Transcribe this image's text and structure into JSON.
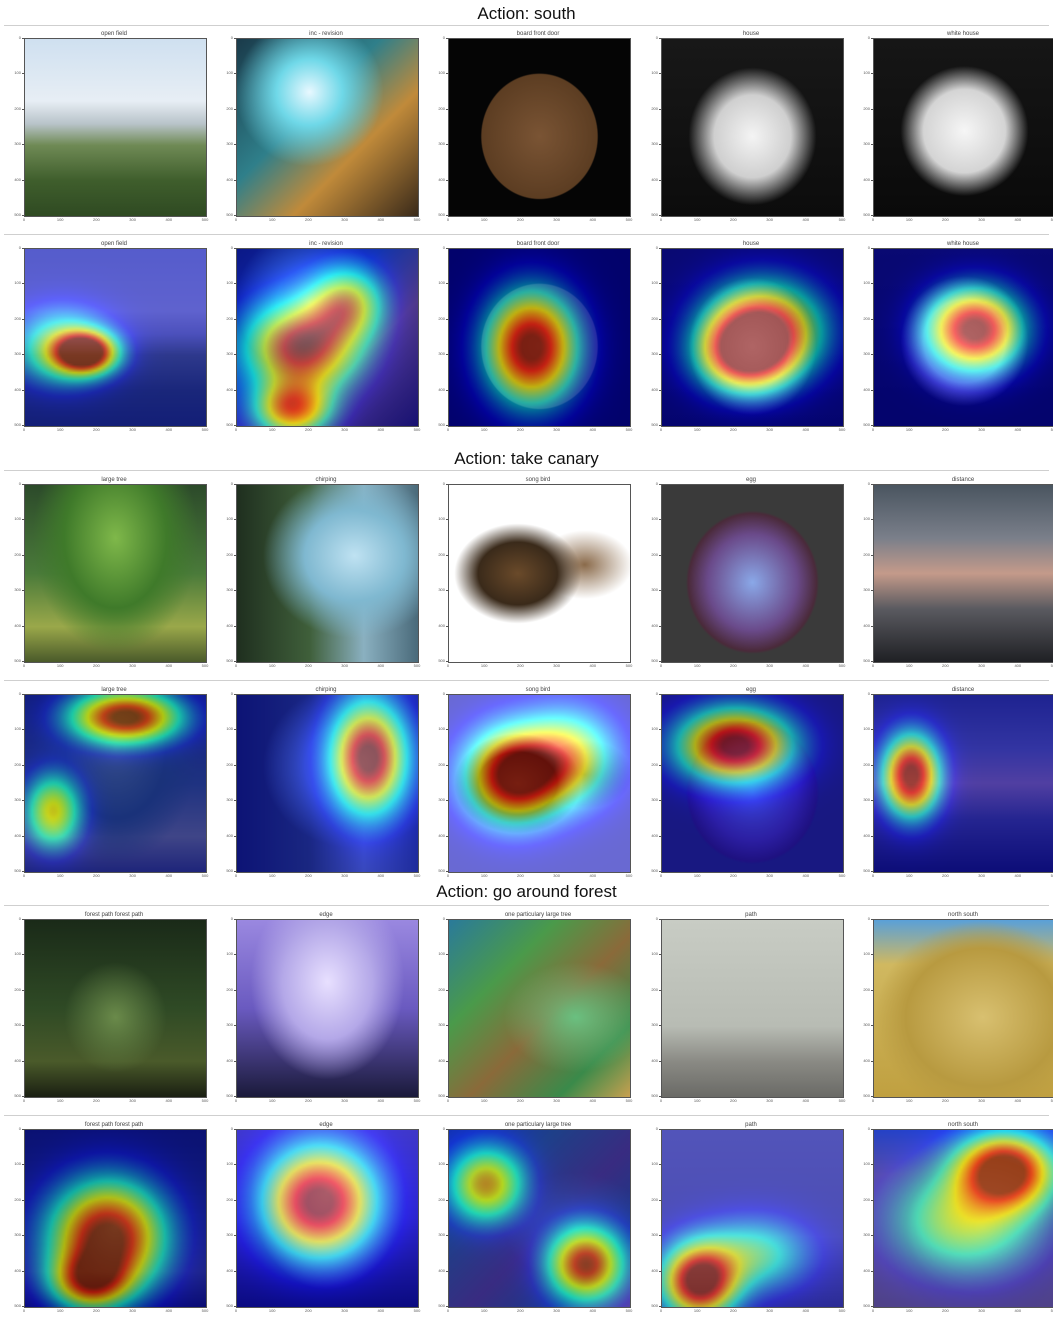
{
  "sections": [
    {
      "title": "Action: south",
      "panels": [
        {
          "title": "open field",
          "kind": "field"
        },
        {
          "title": "inc - revision",
          "kind": "hero"
        },
        {
          "title": "board front door",
          "kind": "door"
        },
        {
          "title": "house",
          "kind": "house"
        },
        {
          "title": "white house",
          "kind": "whitehouse"
        }
      ],
      "heatmaps": [
        [
          [
            0.33,
            0.58,
            0.16,
            0.11,
            1.0
          ],
          [
            0.2,
            0.55,
            0.25,
            0.2,
            0.5
          ]
        ],
        [
          [
            0.35,
            0.55,
            0.3,
            0.25,
            0.9
          ],
          [
            0.3,
            0.9,
            0.2,
            0.15,
            0.7
          ],
          [
            0.6,
            0.3,
            0.2,
            0.2,
            0.6
          ]
        ],
        [
          [
            0.45,
            0.55,
            0.24,
            0.3,
            1.0
          ]
        ],
        [
          [
            0.55,
            0.45,
            0.3,
            0.25,
            0.95
          ],
          [
            0.45,
            0.6,
            0.25,
            0.2,
            0.7
          ]
        ],
        [
          [
            0.55,
            0.45,
            0.25,
            0.22,
            1.0
          ]
        ]
      ]
    },
    {
      "title": "Action: take canary",
      "panels": [
        {
          "title": "large tree",
          "kind": "tree"
        },
        {
          "title": "chirping",
          "kind": "forestcity"
        },
        {
          "title": "song bird",
          "kind": "sketch"
        },
        {
          "title": "egg",
          "kind": "egg"
        },
        {
          "title": "distance",
          "kind": "mountain"
        }
      ],
      "heatmaps": [
        [
          [
            0.55,
            0.12,
            0.28,
            0.14,
            1.0
          ],
          [
            0.15,
            0.65,
            0.15,
            0.2,
            0.6
          ]
        ],
        [
          [
            0.72,
            0.35,
            0.2,
            0.3,
            1.0
          ]
        ],
        [
          [
            0.35,
            0.45,
            0.25,
            0.25,
            1.0
          ],
          [
            0.65,
            0.35,
            0.25,
            0.25,
            0.6
          ]
        ],
        [
          [
            0.4,
            0.28,
            0.3,
            0.2,
            1.0
          ]
        ],
        [
          [
            0.2,
            0.45,
            0.15,
            0.22,
            1.0
          ]
        ]
      ]
    },
    {
      "title": "Action: go around forest",
      "panels": [
        {
          "title": "forest path forest path",
          "kind": "forestpath"
        },
        {
          "title": "edge",
          "kind": "edge"
        },
        {
          "title": "one particulary large tree",
          "kind": "jungle"
        },
        {
          "title": "path",
          "kind": "path"
        },
        {
          "title": "north south",
          "kind": "map"
        }
      ],
      "heatmaps": [
        [
          [
            0.45,
            0.6,
            0.3,
            0.3,
            1.0
          ],
          [
            0.35,
            0.85,
            0.2,
            0.15,
            0.6
          ]
        ],
        [
          [
            0.45,
            0.4,
            0.3,
            0.3,
            1.0
          ]
        ],
        [
          [
            0.75,
            0.75,
            0.2,
            0.2,
            0.9
          ],
          [
            0.2,
            0.3,
            0.2,
            0.2,
            0.7
          ]
        ],
        [
          [
            0.2,
            0.85,
            0.2,
            0.2,
            1.0
          ],
          [
            0.5,
            0.7,
            0.3,
            0.2,
            0.4
          ]
        ],
        [
          [
            0.72,
            0.22,
            0.25,
            0.2,
            1.0
          ],
          [
            0.5,
            0.5,
            0.4,
            0.3,
            0.5
          ]
        ]
      ]
    }
  ],
  "axis_ticks": {
    "y": [
      "0",
      "100",
      "200",
      "300",
      "400",
      "500"
    ],
    "x": [
      "0",
      "100",
      "200",
      "300",
      "400",
      "500"
    ]
  }
}
